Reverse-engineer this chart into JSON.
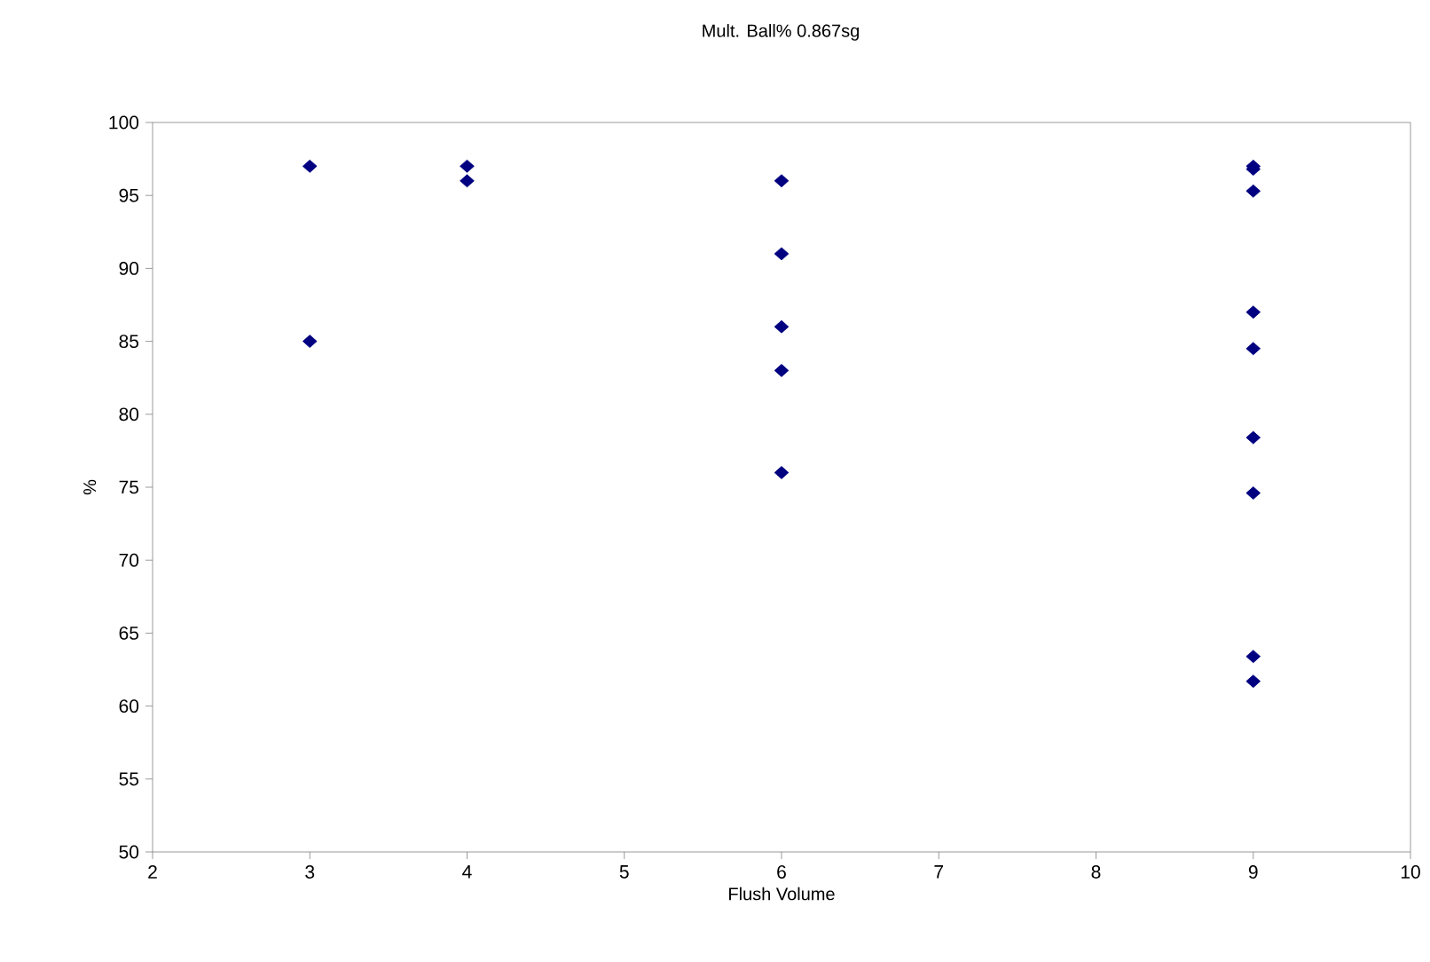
{
  "chart_data": {
    "type": "scatter",
    "title": "Mult. Ball% 0.867sg",
    "xlabel": "Flush Volume",
    "ylabel": "%",
    "x": [
      3,
      3,
      4,
      4,
      6,
      6,
      6,
      6,
      6,
      9,
      9,
      9,
      9,
      9,
      9,
      9,
      9,
      9
    ],
    "values": [
      97,
      85,
      97,
      96,
      96,
      91,
      86,
      83,
      76,
      97,
      96.8,
      95.3,
      87,
      84.5,
      78.4,
      74.6,
      63.4,
      61.7
    ],
    "color": "#000080",
    "marker": "diamond",
    "grid": false,
    "xlim": [
      2,
      10
    ],
    "ylim": [
      50,
      100
    ],
    "xticks": [
      2,
      3,
      4,
      5,
      6,
      7,
      8,
      9,
      10
    ],
    "yticks": [
      50,
      55,
      60,
      65,
      70,
      75,
      80,
      85,
      90,
      95,
      100
    ]
  }
}
